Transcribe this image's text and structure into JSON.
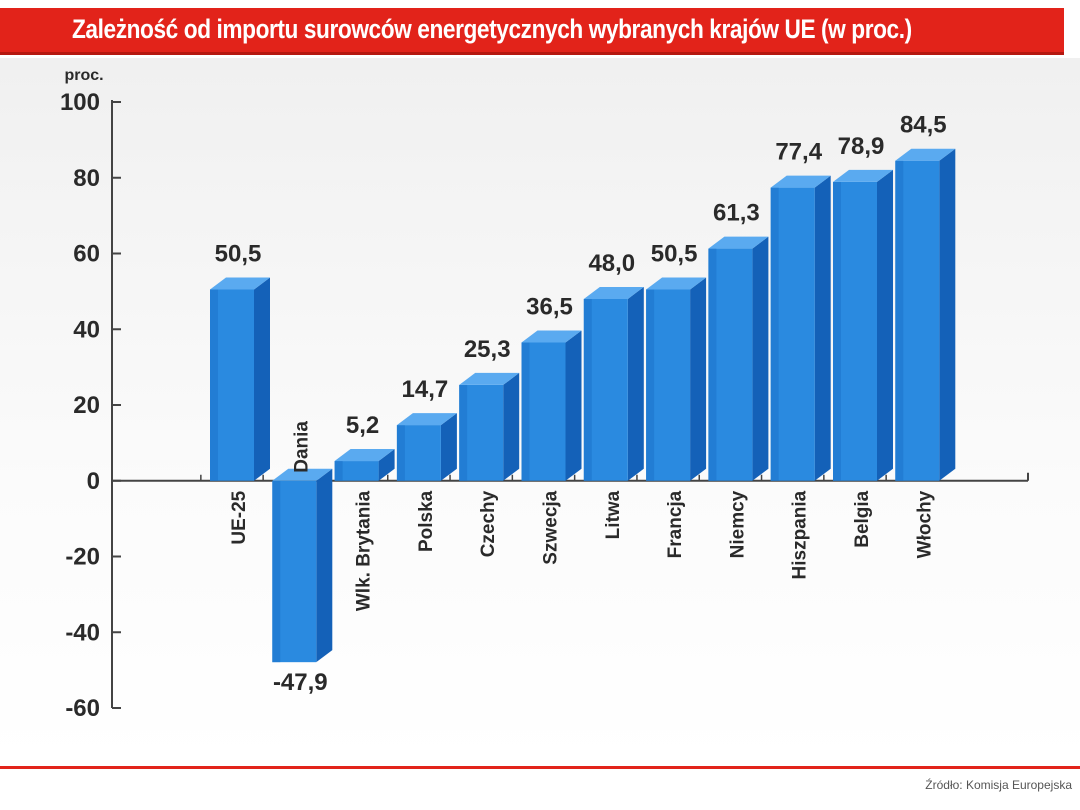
{
  "header": {
    "title": "Zależność od importu surowców energetycznych wybranych krajów UE (w proc.)"
  },
  "source": "Źródło: Komisja Europejska",
  "colors": {
    "title_bg": "#e2231a",
    "bar_front": "#2a8ae0",
    "bar_side": "#1461b8",
    "bar_top": "#5aaaf0",
    "axis": "#444444"
  },
  "chart_data": {
    "type": "bar",
    "title": "Zależność od importu surowców energetycznych wybranych krajów UE (w proc.)",
    "ylabel": "proc.",
    "xlabel": "",
    "ylim": [
      -60,
      100
    ],
    "yticks": [
      100,
      80,
      60,
      40,
      20,
      0,
      -20,
      -40,
      -60
    ],
    "ytick_labels": [
      "100",
      "80",
      "60",
      "40",
      "20",
      "0",
      "-20",
      "-40",
      "-60"
    ],
    "categories": [
      "UE-25",
      "Dania",
      "Wlk. Brytania",
      "Polska",
      "Czechy",
      "Szwecja",
      "Litwa",
      "Francja",
      "Niemcy",
      "Hiszpania",
      "Belgia",
      "Włochy"
    ],
    "values": [
      50.5,
      -47.9,
      5.2,
      14.7,
      25.3,
      36.5,
      48.0,
      50.5,
      61.3,
      77.4,
      78.9,
      84.5
    ],
    "value_labels": [
      "50,5",
      "-47,9",
      "5,2",
      "14,7",
      "25,3",
      "36,5",
      "48,0",
      "50,5",
      "61,3",
      "77,4",
      "78,9",
      "84,5"
    ],
    "grid": false,
    "legend": "none",
    "style": "3d-bars"
  }
}
